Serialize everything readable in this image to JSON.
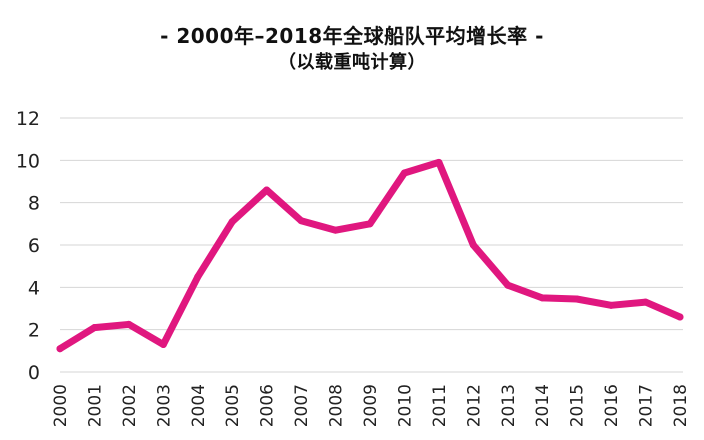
{
  "chart_data": {
    "type": "line",
    "title": "- 2000年–2018年全球船队平均增长率 -",
    "subtitle": "（以载重吨计算）",
    "xlabel": "",
    "ylabel": "",
    "ylim": [
      0,
      12
    ],
    "yticks": [
      "0",
      "2",
      "4",
      "6",
      "8",
      "10",
      "12"
    ],
    "categories": [
      "2000",
      "2001",
      "2002",
      "2003",
      "2004",
      "2005",
      "2006",
      "2007",
      "2008",
      "2009",
      "2010",
      "2011",
      "2012",
      "2013",
      "2014",
      "2015",
      "2016",
      "2017",
      "2018"
    ],
    "series": [
      {
        "name": "全球船队平均增长率",
        "color": "#e0177f",
        "values": [
          1.1,
          2.1,
          2.25,
          1.3,
          4.5,
          7.1,
          8.6,
          7.15,
          6.7,
          7.0,
          9.4,
          9.9,
          6.0,
          4.1,
          3.5,
          3.45,
          3.15,
          3.3,
          2.6
        ]
      }
    ]
  }
}
